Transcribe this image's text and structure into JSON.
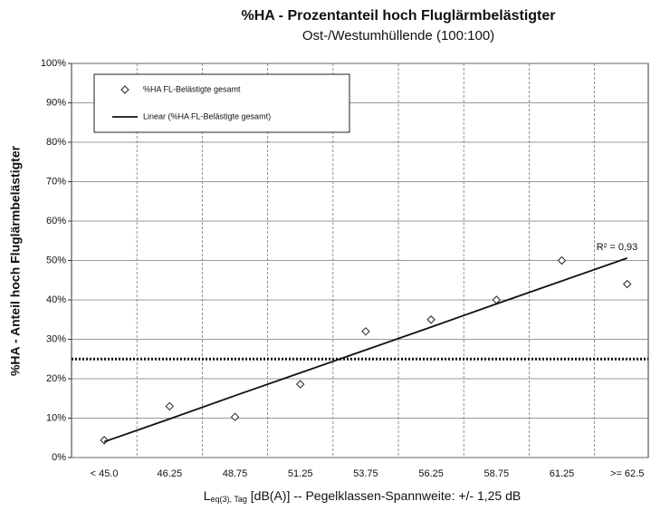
{
  "chart_data": {
    "type": "scatter",
    "title": "%HA - Prozentanteil hoch Fluglärmbelästigter",
    "subtitle": "Ost-/Westumhüllende (100:100)",
    "y_label": "%HA - Anteil hoch Fluglärmbelästigter",
    "x_label": {
      "main": "L",
      "sub": "eq(3), Tag",
      "rest": " [dB(A)] -- Pegelklassen-Spannweite: +/- 1,25 dB"
    },
    "categories": [
      "< 45.0",
      "46.25",
      "48.75",
      "51.25",
      "53.75",
      "56.25",
      "58.75",
      "61.25",
      ">= 62.5"
    ],
    "series": [
      {
        "name": "%HA FL-Belästigte gesamt",
        "color": "#222222",
        "marker": "diamond",
        "values": [
          4.4,
          13,
          10.3,
          18.6,
          32,
          35,
          40,
          50,
          44
        ]
      },
      {
        "name": "Linear (%HA FL-Belästigte gesamt)",
        "color": "#111111",
        "marker": "line",
        "values": [
          4,
          9.8,
          15.7,
          21.5,
          27.3,
          33.1,
          39,
          44.8,
          50.6
        ]
      }
    ],
    "reference_line": 25,
    "annotation": "R² = 0,93",
    "ylim": [
      0,
      100
    ],
    "yticks": [
      {
        "value": 0,
        "label": "0%"
      },
      {
        "value": 10,
        "label": "10%"
      },
      {
        "value": 20,
        "label": "20%"
      },
      {
        "value": 30,
        "label": "30%"
      },
      {
        "value": 40,
        "label": "40%"
      },
      {
        "value": 50,
        "label": "50%"
      },
      {
        "value": 60,
        "label": "60%"
      },
      {
        "value": 70,
        "label": "70%"
      },
      {
        "value": 80,
        "label": "80%"
      },
      {
        "value": 90,
        "label": "90%"
      },
      {
        "value": 100,
        "label": "100%"
      }
    ],
    "grid": true,
    "legend": "top-left"
  }
}
